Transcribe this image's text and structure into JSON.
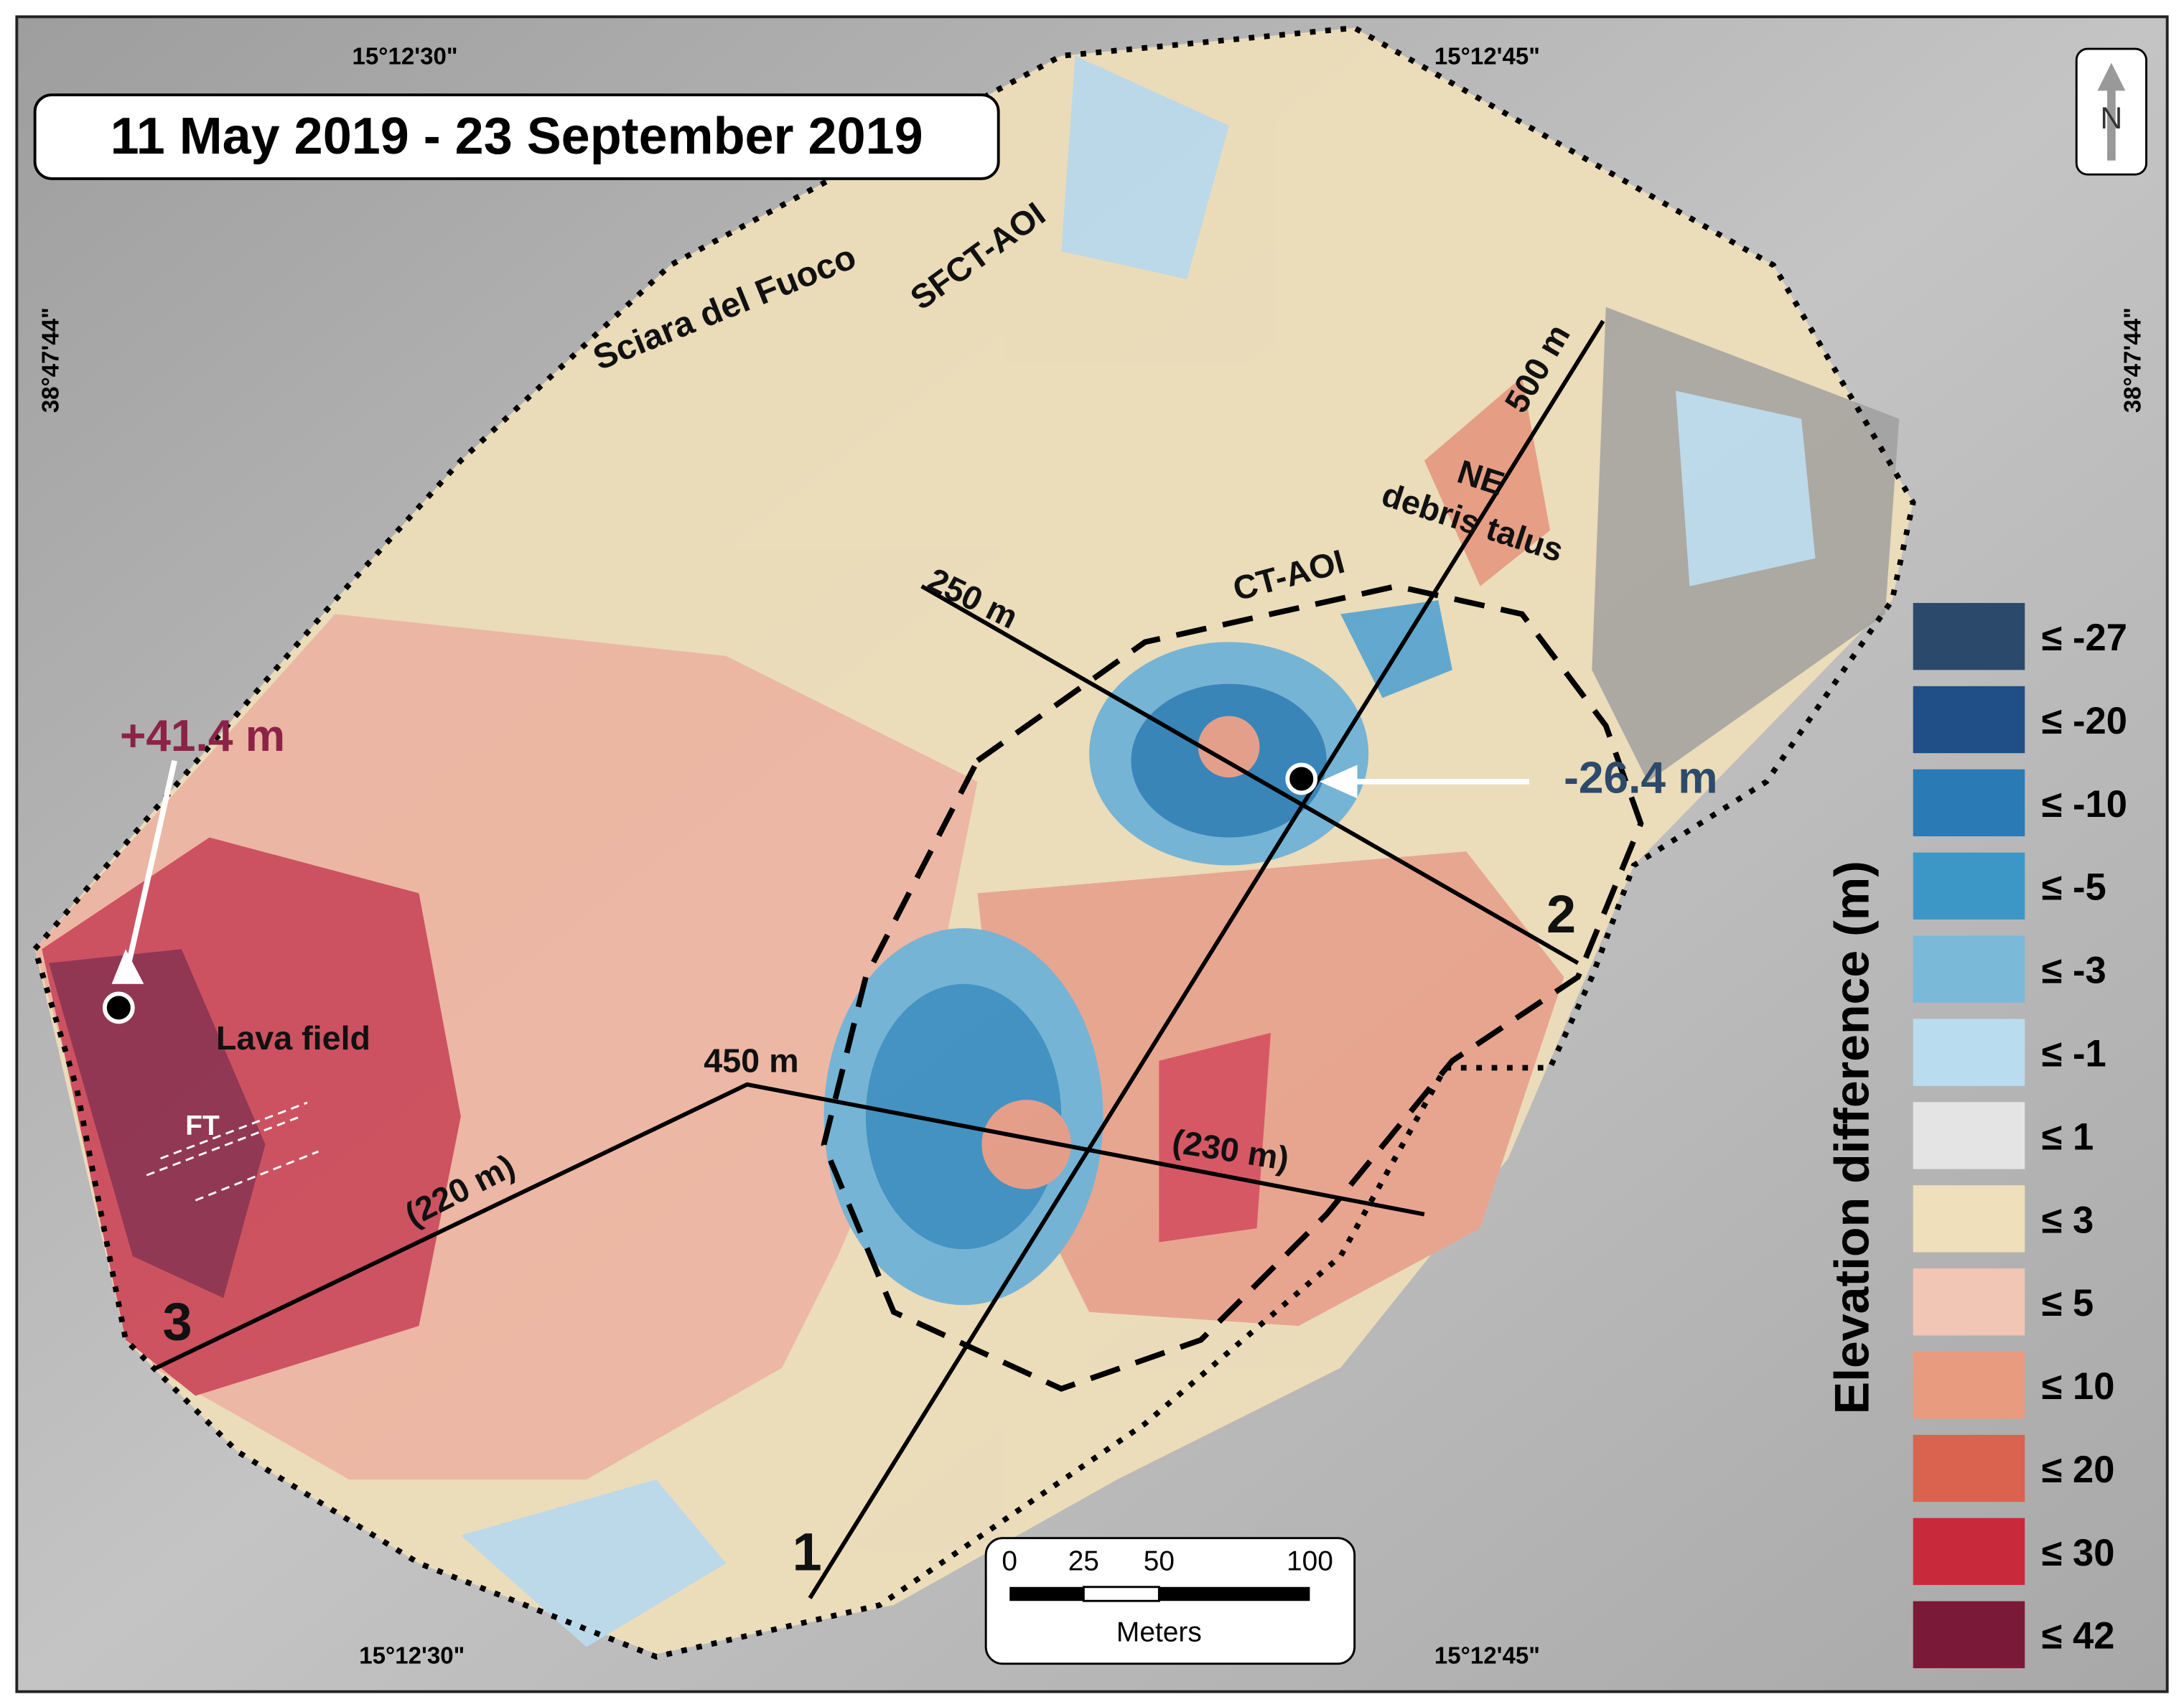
{
  "title": "11 May 2019 - 23 September 2019",
  "coordinates": {
    "top": [
      "15°12'30\"",
      "15°12'45\""
    ],
    "bottom": [
      "15°12'30\"",
      "15°12'45\""
    ],
    "left": "38°47'44\"",
    "right": "38°47'44\""
  },
  "north_arrow": "N",
  "annotations": {
    "max_gain": "+41.4 m",
    "max_loss": "-26.4 m",
    "lava_field": "Lava field",
    "ft": "FT",
    "sciara": "Sciara del Fuoco",
    "sfct_aoi": "SFCT-AOI",
    "ne": "NE",
    "debris_talus": "debris talus",
    "ct_aoi": "CT-AOI"
  },
  "profiles": {
    "p1_length": "500 m",
    "p2_length": "250 m",
    "p3_length": "450 m",
    "p3_seg1": "(220 m)",
    "p3_seg2": "(230 m)",
    "p1": "1",
    "p2": "2",
    "p3": "3"
  },
  "legend": {
    "title": "Elevation difference (m)",
    "items": [
      {
        "label": "≤ -27",
        "color": "#2b4a6b"
      },
      {
        "label": "≤ -20",
        "color": "#1f4f86"
      },
      {
        "label": "≤ -10",
        "color": "#2a7ab5"
      },
      {
        "label": "≤ -5",
        "color": "#3d97c6"
      },
      {
        "label": "≤ -3",
        "color": "#7bb9d8"
      },
      {
        "label": "≤ -1",
        "color": "#b9ddef"
      },
      {
        "label": "≤ 1",
        "color": "#e4e4e4"
      },
      {
        "label": "≤ 3",
        "color": "#efdfba"
      },
      {
        "label": "≤ 5",
        "color": "#f2c6b4"
      },
      {
        "label": "≤ 10",
        "color": "#e99b7f"
      },
      {
        "label": "≤ 20",
        "color": "#d9634f"
      },
      {
        "label": "≤ 30",
        "color": "#c82a3c"
      },
      {
        "label": "≤ 42",
        "color": "#7a1a38"
      }
    ]
  },
  "scale_bar": {
    "ticks": [
      "0",
      "25",
      "50",
      "100"
    ],
    "unit": "Meters"
  }
}
